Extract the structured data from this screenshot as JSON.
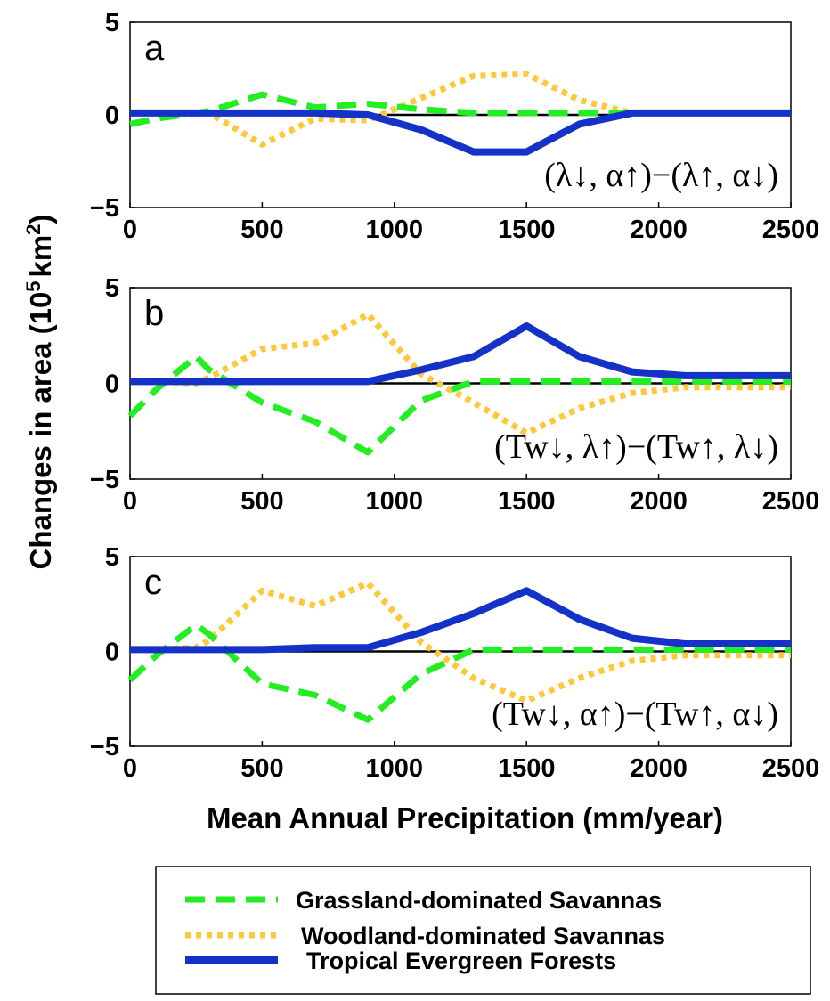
{
  "chart_data": [
    {
      "type": "line",
      "panel_label": "a",
      "annotation": "(λ↓, α↑)−(λ↑, α↓)",
      "x": [
        0,
        100,
        300,
        500,
        700,
        900,
        1100,
        1300,
        1500,
        1700,
        1900,
        2100,
        2300,
        2500
      ],
      "xlim": [
        0,
        2500
      ],
      "ylim": [
        -5,
        5
      ],
      "xticks": [
        0,
        500,
        1000,
        1500,
        2000,
        2500
      ],
      "yticks": [
        -5,
        0,
        5
      ],
      "series": [
        {
          "name": "Grassland-dominated Savannas",
          "color": "#22ee22",
          "style": "dashed",
          "values": [
            -0.5,
            -0.2,
            0.2,
            1.1,
            0.4,
            0.6,
            0.3,
            0.1,
            0.1,
            0.1,
            0.1,
            0.1,
            0.1,
            0.1
          ]
        },
        {
          "name": "Woodland-dominated Savannas",
          "color": "#ffc83c",
          "style": "dotted",
          "values": [
            0.1,
            0.1,
            0.1,
            -1.6,
            -0.2,
            -0.3,
            0.9,
            2.1,
            2.2,
            0.8,
            0.1,
            0.1,
            0.1,
            0.1
          ]
        },
        {
          "name": "Tropical Evergreen Forests",
          "color": "#1432c8",
          "style": "solid",
          "values": [
            0.1,
            0.1,
            0.1,
            0.1,
            0.1,
            0.0,
            -0.8,
            -2.0,
            -2.0,
            -0.5,
            0.1,
            0.1,
            0.1,
            0.1
          ]
        }
      ]
    },
    {
      "type": "line",
      "panel_label": "b",
      "annotation": "(Tw↓, λ↑)−(Tw↑, λ↓)",
      "x": [
        0,
        100,
        250,
        300,
        500,
        700,
        900,
        1100,
        1300,
        1500,
        1700,
        1900,
        2100,
        2300,
        2500
      ],
      "xlim": [
        0,
        2500
      ],
      "ylim": [
        -5,
        5
      ],
      "xticks": [
        0,
        500,
        1000,
        1500,
        2000,
        2500
      ],
      "yticks": [
        -5,
        0,
        5
      ],
      "series": [
        {
          "name": "Grassland-dominated Savannas",
          "color": "#22ee22",
          "style": "dashed",
          "values": [
            -1.7,
            -0.3,
            1.4,
            0.7,
            -1.0,
            -2.0,
            -3.6,
            -0.9,
            0.1,
            0.1,
            0.1,
            0.1,
            0.1,
            0.1,
            0.1
          ]
        },
        {
          "name": "Woodland-dominated Savannas",
          "color": "#ffc83c",
          "style": "dotted",
          "values": [
            0.1,
            0.1,
            0.0,
            0.3,
            1.8,
            2.1,
            3.6,
            0.5,
            -1.0,
            -2.6,
            -1.3,
            -0.5,
            -0.2,
            -0.2,
            -0.2
          ]
        },
        {
          "name": "Tropical Evergreen Forests",
          "color": "#1432c8",
          "style": "solid",
          "values": [
            0.1,
            0.1,
            0.1,
            0.1,
            0.1,
            0.1,
            0.1,
            0.7,
            1.4,
            3.0,
            1.4,
            0.6,
            0.4,
            0.4,
            0.4
          ]
        }
      ]
    },
    {
      "type": "line",
      "panel_label": "c",
      "annotation": "(Tw↓, α↑)−(Tw↑, α↓)",
      "x": [
        0,
        100,
        250,
        300,
        500,
        700,
        900,
        1100,
        1300,
        1500,
        1700,
        1900,
        2100,
        2300,
        2500
      ],
      "xlim": [
        0,
        2500
      ],
      "ylim": [
        -5,
        5
      ],
      "xticks": [
        0,
        500,
        1000,
        1500,
        2000,
        2500
      ],
      "yticks": [
        -5,
        0,
        5
      ],
      "series": [
        {
          "name": "Grassland-dominated Savannas",
          "color": "#22ee22",
          "style": "dashed",
          "values": [
            -1.5,
            -0.2,
            1.4,
            0.9,
            -1.7,
            -2.3,
            -3.6,
            -1.2,
            0.1,
            0.1,
            0.1,
            0.1,
            0.1,
            0.1,
            0.1
          ]
        },
        {
          "name": "Woodland-dominated Savannas",
          "color": "#ffc83c",
          "style": "dotted",
          "values": [
            0.1,
            0.1,
            0.2,
            0.6,
            3.2,
            2.4,
            3.6,
            0.5,
            -1.4,
            -2.6,
            -1.4,
            -0.5,
            -0.2,
            -0.2,
            -0.2
          ]
        },
        {
          "name": "Tropical Evergreen Forests",
          "color": "#1432c8",
          "style": "solid",
          "values": [
            0.1,
            0.1,
            0.1,
            0.1,
            0.1,
            0.2,
            0.2,
            1.0,
            2.0,
            3.2,
            1.7,
            0.7,
            0.4,
            0.4,
            0.4
          ]
        }
      ]
    }
  ],
  "shared": {
    "ylabel_main": "Changes in area (10",
    "ylabel_exponent": "5",
    "ylabel_unit": "km",
    "ylabel_unit_exponent": "2",
    "ylabel_close": ")",
    "xlabel": "Mean Annual Precipitation (mm/year)",
    "legend": [
      {
        "label": "Grassland-dominated Savannas",
        "color": "#22ee22",
        "style": "dashed"
      },
      {
        "label": "Woodland-dominated Savannas",
        "color": "#ffc83c",
        "style": "dotted"
      },
      {
        "label": "Tropical Evergreen Forests",
        "color": "#1432c8",
        "style": "solid"
      }
    ]
  }
}
